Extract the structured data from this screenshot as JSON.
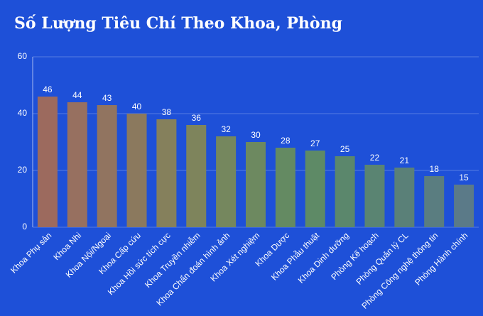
{
  "chart_data": {
    "type": "bar",
    "title": "Số Lượng Tiêu Chí Theo Khoa, Phòng",
    "categories": [
      "Khoa Phụ sản",
      "Khoa Nhi",
      "Khoa Nội/Ngoại",
      "Khoa Cấp cứu",
      "Khoa Hồi sức tích cực",
      "Khoa Truyền nhiễm",
      "Khoa Chẩn đoán hình ảnh",
      "Khoa Xét nghiệm",
      "Khoa Dược",
      "Khoa Phẫu thuật",
      "Khoa Dinh dưỡng",
      "Phòng Kế hoạch",
      "Phòng Quản lý CL",
      "Phòng Công nghệ thông tin",
      "Phòng Hành chính"
    ],
    "values": [
      46,
      44,
      43,
      40,
      38,
      36,
      32,
      30,
      28,
      27,
      25,
      22,
      21,
      18,
      15
    ],
    "colors": [
      "#9c6a5e",
      "#977060",
      "#917460",
      "#8b795e",
      "#85805c",
      "#7e845c",
      "#75875e",
      "#6d8960",
      "#648a62",
      "#5e8a66",
      "#5b876c",
      "#5a8472",
      "#5a8078",
      "#5a7d80",
      "#5b7a88"
    ],
    "ylim": [
      0,
      60
    ],
    "yticks": [
      0,
      20,
      40,
      60
    ],
    "grid": true
  }
}
